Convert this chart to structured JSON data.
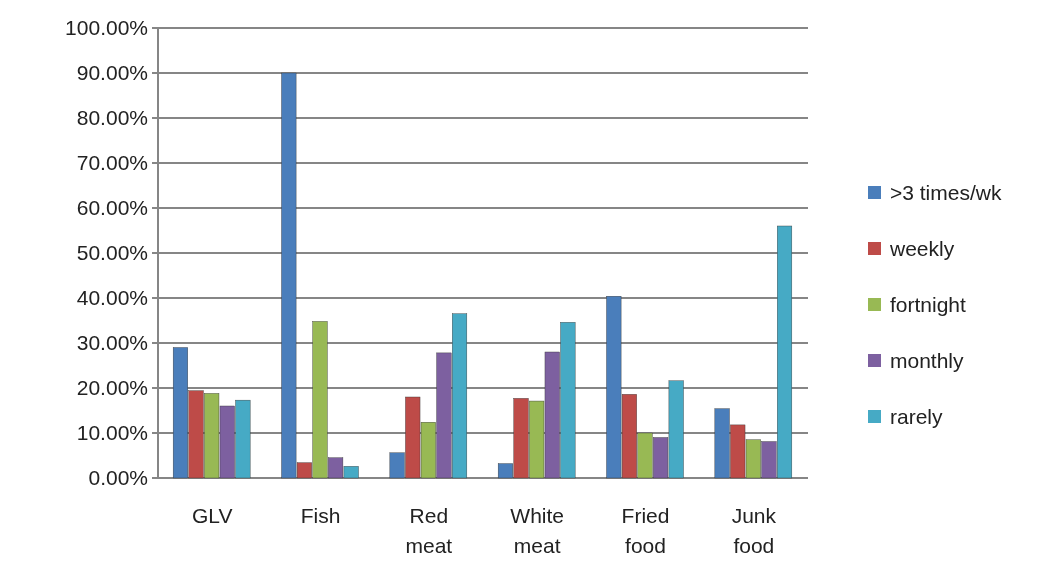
{
  "chart_data": {
    "type": "bar",
    "categories": [
      "GLV",
      "Fish",
      "Red meat",
      "White meat",
      "Fried food",
      "Junk food"
    ],
    "series": [
      {
        "name": ">3 times/wk",
        "color": "#4a7ebb",
        "values": [
          29,
          90,
          5.6,
          3.2,
          40.4,
          15.4
        ]
      },
      {
        "name": "weekly",
        "color": "#be4b48",
        "values": [
          19.4,
          3.4,
          18,
          17.7,
          18.6,
          11.8
        ]
      },
      {
        "name": "fortnight",
        "color": "#98b954",
        "values": [
          18.8,
          34.8,
          12.4,
          17.1,
          10,
          8.5
        ]
      },
      {
        "name": "monthly",
        "color": "#7d60a0",
        "values": [
          16,
          4.5,
          27.8,
          28,
          9,
          8.1
        ]
      },
      {
        "name": "rarely",
        "color": "#46aac5",
        "values": [
          17.3,
          2.6,
          36.5,
          34.6,
          21.6,
          56
        ]
      }
    ],
    "ylim": [
      0,
      100
    ],
    "yticks": [
      {
        "value": 0,
        "label": "0.00%"
      },
      {
        "value": 10,
        "label": "10.00%"
      },
      {
        "value": 20,
        "label": "20.00%"
      },
      {
        "value": 30,
        "label": "30.00%"
      },
      {
        "value": 40,
        "label": "40.00%"
      },
      {
        "value": 50,
        "label": "50.00%"
      },
      {
        "value": 60,
        "label": "60.00%"
      },
      {
        "value": 70,
        "label": "70.00%"
      },
      {
        "value": 80,
        "label": "80.00%"
      },
      {
        "value": 90,
        "label": "90.00%"
      },
      {
        "value": 100,
        "label": "100.00%"
      }
    ],
    "grid": "y",
    "legend": "right"
  }
}
